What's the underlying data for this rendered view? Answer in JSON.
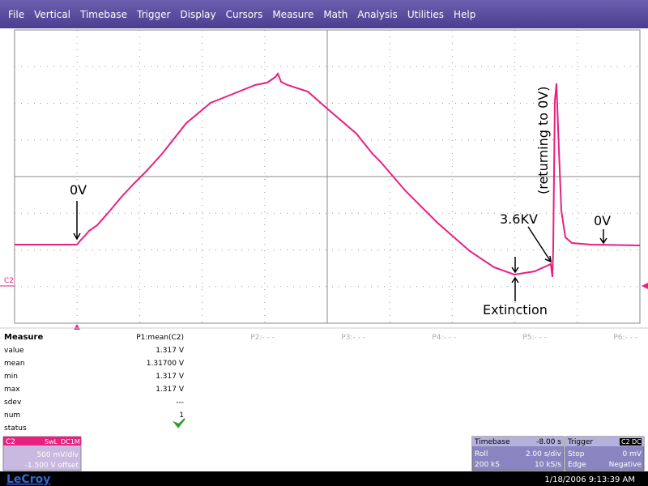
{
  "menu": [
    "File",
    "Vertical",
    "Timebase",
    "Trigger",
    "Display",
    "Cursors",
    "Measure",
    "Math",
    "Analysis",
    "Utilities",
    "Help"
  ],
  "trace": {
    "channel": "C2",
    "annotations": {
      "zero_left": "0V",
      "peak": "3.6KV",
      "returning": "(returning to 0V)",
      "extinction": "Extinction",
      "zero_right": "0V"
    }
  },
  "measure": {
    "title": "Measure",
    "columns": [
      "P1:mean(C2)",
      "P2:- - -",
      "P3:- - -",
      "P4:- - -",
      "P5:- - -",
      "P6:- - -"
    ],
    "rows": [
      {
        "label": "value",
        "value": "1.317 V"
      },
      {
        "label": "mean",
        "value": "1.31700 V"
      },
      {
        "label": "min",
        "value": "1.317 V"
      },
      {
        "label": "max",
        "value": "1.317 V"
      },
      {
        "label": "sdev",
        "value": "---"
      },
      {
        "label": "num",
        "value": "1"
      },
      {
        "label": "status"
      }
    ]
  },
  "channel_box": {
    "name": "C2",
    "tag1": "SwL",
    "tag2": "DC1M",
    "scale": "500 mV/div",
    "offset": "-1.500 V offset"
  },
  "timebase_box": {
    "title": "Timebase",
    "delay": "-8.00 s",
    "mode": "Roll",
    "per_div": "2.00 s/div",
    "samples": "200 kS",
    "rate": "10 kS/s"
  },
  "trigger_box": {
    "title": "Trigger",
    "source": "C2",
    "coupling": "DC",
    "state": "Stop",
    "level": "0 mV",
    "type": "Edge",
    "slope": "Negative"
  },
  "footer": {
    "brand": "LeCroy",
    "datetime": "1/18/2006 9:13:39 AM"
  }
}
